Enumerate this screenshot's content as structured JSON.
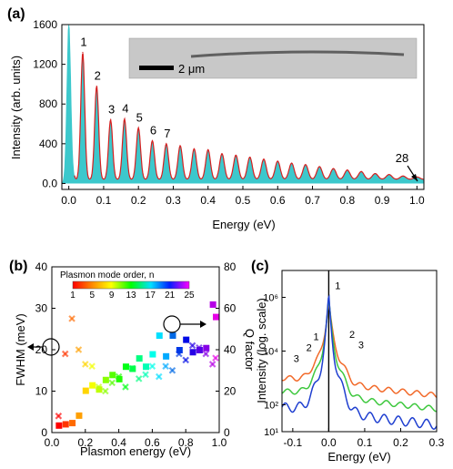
{
  "panels": {
    "a": "(a)",
    "b": "(b)",
    "c": "(c)"
  },
  "inset": {
    "scale_label": "2 μm"
  },
  "colors": {
    "fill": "#3cc8cc",
    "curve": "#d62020",
    "orange": "#f26a2a",
    "green": "#3ec83e",
    "blue": "#1f3fd0"
  },
  "chart_data": [
    {
      "panel": "a",
      "type": "area",
      "xlabel": "Energy (eV)",
      "ylabel": "Intensity (arb. units)",
      "xlim": [
        -0.02,
        1.02
      ],
      "ylim": [
        -60,
        1600
      ],
      "xticks": [
        "0.0",
        "0.1",
        "0.2",
        "0.3",
        "0.4",
        "0.5",
        "0.6",
        "0.7",
        "0.8",
        "0.9",
        "1.0"
      ],
      "yticks": [
        "0.0",
        "400",
        "800",
        "1200",
        "1600"
      ],
      "zero_peak_energy": 0.0,
      "peak_spacing_eV": 0.04,
      "peaks": [
        {
          "n": 1,
          "energy": 0.04,
          "intensity": 1320
        },
        {
          "n": 2,
          "energy": 0.08,
          "intensity": 980
        },
        {
          "n": 3,
          "energy": 0.12,
          "intensity": 640
        },
        {
          "n": 4,
          "energy": 0.16,
          "intensity": 650
        },
        {
          "n": 5,
          "energy": 0.2,
          "intensity": 560
        },
        {
          "n": 6,
          "energy": 0.24,
          "intensity": 430
        },
        {
          "n": 7,
          "energy": 0.28,
          "intensity": 400
        },
        {
          "n": 8,
          "energy": 0.32,
          "intensity": 380
        },
        {
          "n": 9,
          "energy": 0.36,
          "intensity": 350
        },
        {
          "n": 10,
          "energy": 0.4,
          "intensity": 340
        },
        {
          "n": 11,
          "energy": 0.44,
          "intensity": 300
        },
        {
          "n": 12,
          "energy": 0.48,
          "intensity": 285
        },
        {
          "n": 13,
          "energy": 0.52,
          "intensity": 265
        },
        {
          "n": 14,
          "energy": 0.56,
          "intensity": 245
        },
        {
          "n": 15,
          "energy": 0.6,
          "intensity": 225
        },
        {
          "n": 16,
          "energy": 0.64,
          "intensity": 205
        },
        {
          "n": 17,
          "energy": 0.68,
          "intensity": 190
        },
        {
          "n": 18,
          "energy": 0.72,
          "intensity": 170
        },
        {
          "n": 19,
          "energy": 0.76,
          "intensity": 150
        },
        {
          "n": 20,
          "energy": 0.8,
          "intensity": 135
        },
        {
          "n": 21,
          "energy": 0.84,
          "intensity": 120
        },
        {
          "n": 22,
          "energy": 0.88,
          "intensity": 100
        },
        {
          "n": 23,
          "energy": 0.92,
          "intensity": 90
        },
        {
          "n": 24,
          "energy": 0.96,
          "intensity": 75
        },
        {
          "n": 25,
          "energy": 1.0,
          "intensity": 65
        }
      ],
      "peak_labels": [
        "1",
        "2",
        "3",
        "4",
        "5",
        "6",
        "7"
      ],
      "arrow_label": "28"
    },
    {
      "panel": "b",
      "type": "scatter",
      "xlabel": "Plasmon energy (eV)",
      "ylabel": "FWHM (meV)",
      "y2label": "Q factor",
      "xlim": [
        0,
        1.0
      ],
      "ylim": [
        0,
        40
      ],
      "y2lim": [
        0,
        80
      ],
      "xticks": [
        "0.0",
        "0.2",
        "0.4",
        "0.6",
        "0.8",
        "1.0"
      ],
      "yticks": [
        "0",
        "10",
        "20",
        "30",
        "40"
      ],
      "y2ticks": [
        "0",
        "20",
        "40",
        "60",
        "80"
      ],
      "colorbar": {
        "title": "Plasmon mode order, n",
        "ticks": [
          "1",
          "5",
          "9",
          "13",
          "17",
          "21",
          "25"
        ],
        "range": [
          1,
          25
        ]
      },
      "series": [
        {
          "name": "FWHM",
          "marker": "square",
          "axis": "left",
          "points": [
            [
              0.04,
              1.8,
              1
            ],
            [
              0.08,
              2.1,
              2
            ],
            [
              0.12,
              2.4,
              3
            ],
            [
              0.16,
              4.2,
              4
            ],
            [
              0.2,
              10.2,
              5
            ],
            [
              0.24,
              11.5,
              6
            ],
            [
              0.28,
              10.5,
              7
            ],
            [
              0.32,
              12.8,
              8
            ],
            [
              0.36,
              14.0,
              9
            ],
            [
              0.4,
              13.0,
              10
            ],
            [
              0.44,
              16.0,
              11
            ],
            [
              0.48,
              15.5,
              12
            ],
            [
              0.52,
              18.0,
              13
            ],
            [
              0.56,
              16.0,
              14
            ],
            [
              0.6,
              19.0,
              15
            ],
            [
              0.64,
              23.5,
              16
            ],
            [
              0.68,
              18.5,
              17
            ],
            [
              0.72,
              23.5,
              18
            ],
            [
              0.76,
              20.0,
              19
            ],
            [
              0.8,
              22.5,
              20
            ],
            [
              0.84,
              19.5,
              21
            ],
            [
              0.88,
              20.0,
              22
            ],
            [
              0.92,
              20.5,
              23
            ],
            [
              0.96,
              31.0,
              24
            ],
            [
              1.0,
              28.0,
              25
            ]
          ]
        },
        {
          "name": "Q factor",
          "marker": "cross",
          "axis": "right",
          "points": [
            [
              0.04,
              8,
              1
            ],
            [
              0.08,
              38,
              2
            ],
            [
              0.12,
              55,
              3
            ],
            [
              0.16,
              40,
              4
            ],
            [
              0.2,
              33,
              5
            ],
            [
              0.24,
              32,
              6
            ],
            [
              0.28,
              22,
              7
            ],
            [
              0.32,
              20,
              8
            ],
            [
              0.36,
              24,
              9
            ],
            [
              0.4,
              27,
              10
            ],
            [
              0.44,
              22,
              11
            ],
            [
              0.48,
              31,
              12
            ],
            [
              0.52,
              26,
              13
            ],
            [
              0.56,
              28,
              14
            ],
            [
              0.6,
              32,
              15
            ],
            [
              0.64,
              27,
              16
            ],
            [
              0.68,
              32,
              17
            ],
            [
              0.72,
              30,
              18
            ],
            [
              0.76,
              38,
              19
            ],
            [
              0.8,
              35,
              20
            ],
            [
              0.84,
              42,
              21
            ],
            [
              0.88,
              41,
              22
            ],
            [
              0.92,
              38,
              23
            ],
            [
              0.96,
              33,
              24
            ],
            [
              1.0,
              36,
              25
            ]
          ]
        }
      ]
    },
    {
      "panel": "c",
      "type": "line",
      "xlabel": "Energy (eV)",
      "ylabel": "Intensity (log. scale)",
      "xlim": [
        -0.13,
        0.3
      ],
      "ylim_log10": [
        1,
        7
      ],
      "xticks": [
        "-0.1",
        "0.0",
        "0.1",
        "0.2",
        "0.3"
      ],
      "yticks": [
        "10⁶",
        "10⁴",
        "10²",
        "10¹"
      ],
      "ytick_values_log10": [
        6,
        4,
        2,
        1
      ],
      "series": [
        {
          "name": "orange",
          "color": "orange",
          "offset_log10": 1.1
        },
        {
          "name": "green",
          "color": "green",
          "offset_log10": 0.6
        },
        {
          "name": "blue",
          "color": "blue",
          "offset_log10": 0.0
        }
      ],
      "peak_labels": [
        {
          "text": "1",
          "x": -0.035,
          "y": 4.4
        },
        {
          "text": "2",
          "x": -0.055,
          "y": 4.0
        },
        {
          "text": "3",
          "x": -0.09,
          "y": 3.6
        },
        {
          "text": "1",
          "x": 0.025,
          "y": 6.3
        },
        {
          "text": "2",
          "x": 0.065,
          "y": 4.5
        },
        {
          "text": "3",
          "x": 0.09,
          "y": 4.1
        }
      ]
    }
  ]
}
